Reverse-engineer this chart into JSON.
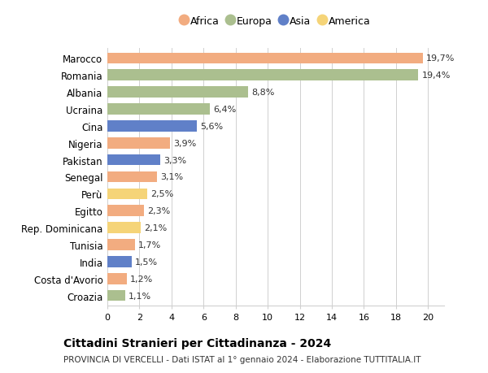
{
  "countries": [
    "Marocco",
    "Romania",
    "Albania",
    "Ucraina",
    "Cina",
    "Nigeria",
    "Pakistan",
    "Senegal",
    "Perù",
    "Egitto",
    "Rep. Dominicana",
    "Tunisia",
    "India",
    "Costa d'Avorio",
    "Croazia"
  ],
  "values": [
    19.7,
    19.4,
    8.8,
    6.4,
    5.6,
    3.9,
    3.3,
    3.1,
    2.5,
    2.3,
    2.1,
    1.7,
    1.5,
    1.2,
    1.1
  ],
  "labels": [
    "19,7%",
    "19,4%",
    "8,8%",
    "6,4%",
    "5,6%",
    "3,9%",
    "3,3%",
    "3,1%",
    "2,5%",
    "2,3%",
    "2,1%",
    "1,7%",
    "1,5%",
    "1,2%",
    "1,1%"
  ],
  "continents": [
    "Africa",
    "Europa",
    "Europa",
    "Europa",
    "Asia",
    "Africa",
    "Asia",
    "Africa",
    "America",
    "Africa",
    "America",
    "Africa",
    "Asia",
    "Africa",
    "Europa"
  ],
  "colors": {
    "Africa": "#F2AC80",
    "Europa": "#ABBF8F",
    "Asia": "#6080C8",
    "America": "#F5D478"
  },
  "legend_order": [
    "Africa",
    "Europa",
    "Asia",
    "America"
  ],
  "title": "Cittadini Stranieri per Cittadinanza - 2024",
  "subtitle": "PROVINCIA DI VERCELLI - Dati ISTAT al 1° gennaio 2024 - Elaborazione TUTTITALIA.IT",
  "xlim": [
    0,
    21
  ],
  "xticks": [
    0,
    2,
    4,
    6,
    8,
    10,
    12,
    14,
    16,
    18,
    20
  ],
  "background_color": "#ffffff",
  "grid_color": "#d0d0d0",
  "bar_height": 0.65,
  "label_fontsize": 8.0,
  "ytick_fontsize": 8.5,
  "xtick_fontsize": 8.0,
  "title_fontsize": 10.0,
  "subtitle_fontsize": 7.5,
  "legend_fontsize": 9.0
}
